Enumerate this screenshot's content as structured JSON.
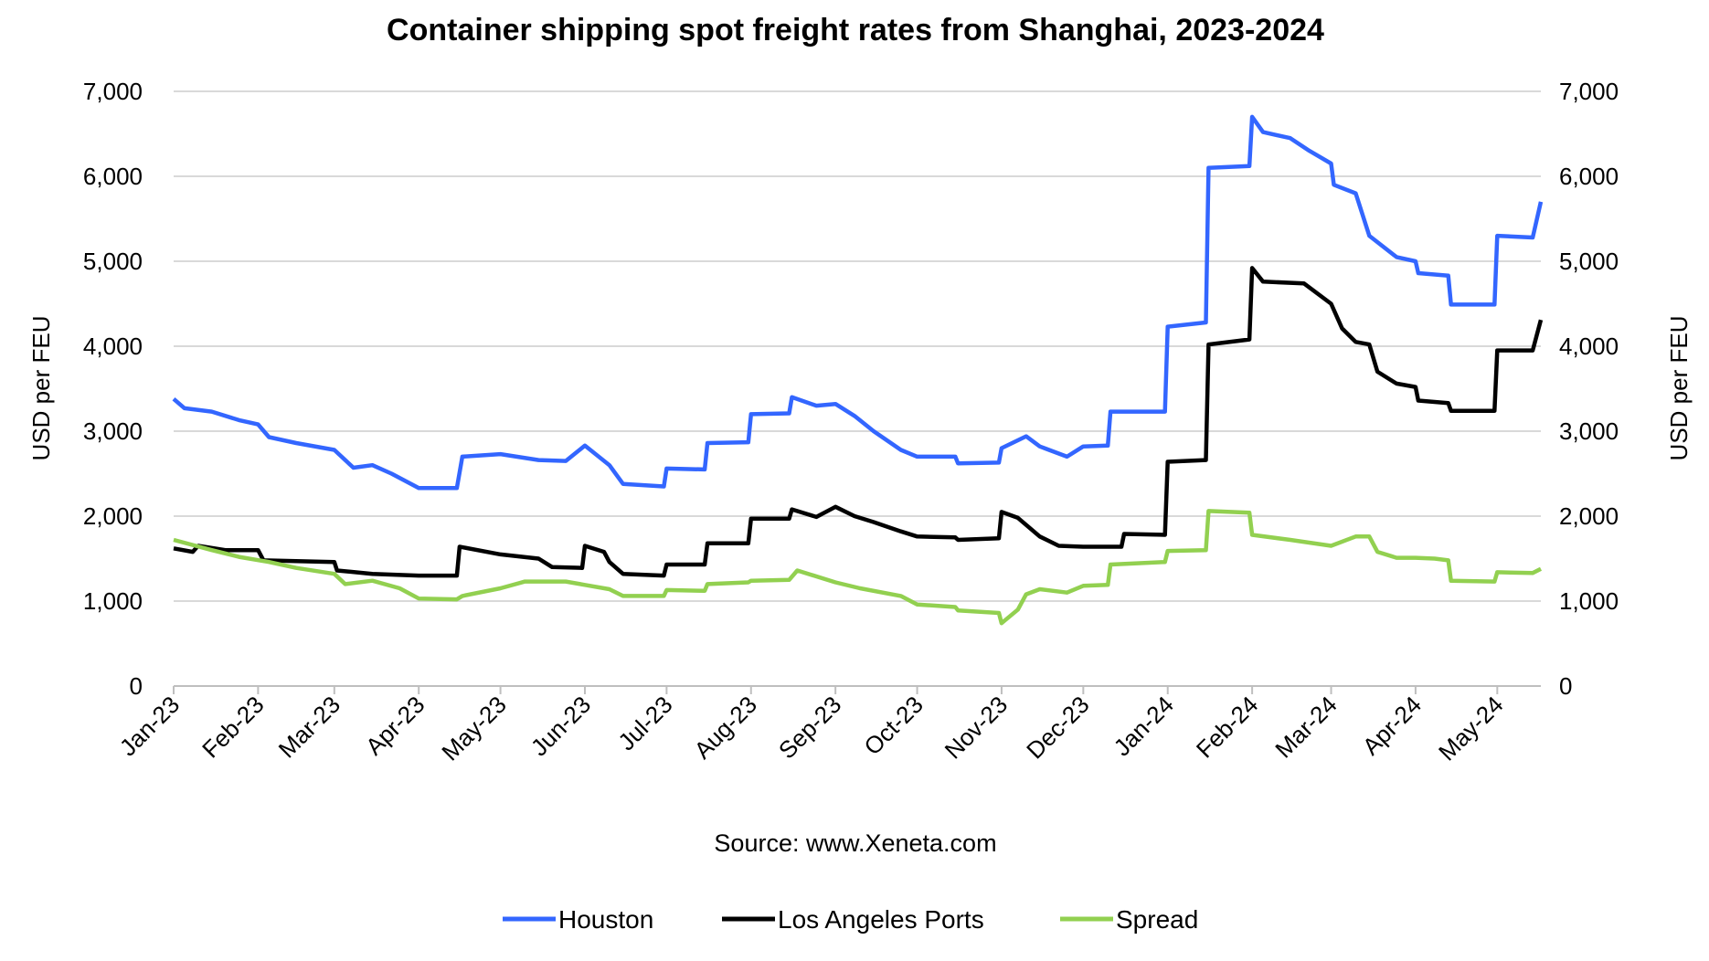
{
  "chart_data": {
    "type": "line",
    "title": "Container shipping spot freight rates from Shanghai, 2023-2024",
    "ylabel_left": "USD per FEU",
    "ylabel_right": "USD per FEU",
    "ylim": [
      0,
      7000
    ],
    "yticks": [
      0,
      1000,
      2000,
      3000,
      4000,
      5000,
      6000,
      7000
    ],
    "ytick_labels": [
      "0",
      "1,000",
      "2,000",
      "3,000",
      "4,000",
      "5,000",
      "6,000",
      "7,000"
    ],
    "xticks": [
      "2023-01-01",
      "2023-02-01",
      "2023-03-01",
      "2023-04-01",
      "2023-05-01",
      "2023-06-01",
      "2023-07-01",
      "2023-08-01",
      "2023-09-01",
      "2023-10-01",
      "2023-11-01",
      "2023-12-01",
      "2024-01-01",
      "2024-02-01",
      "2024-03-01",
      "2024-04-01",
      "2024-05-01"
    ],
    "xtick_labels": [
      "Jan-23",
      "Feb-23",
      "Mar-23",
      "Apr-23",
      "May-23",
      "Jun-23",
      "Jul-23",
      "Aug-23",
      "Sep-23",
      "Oct-23",
      "Nov-23",
      "Dec-23",
      "Jan-24",
      "Feb-24",
      "Mar-24",
      "Apr-24",
      "May-24"
    ],
    "xlim": [
      "2023-01-01",
      "2024-05-17"
    ],
    "grid": "horizontal",
    "legend_position": "bottom",
    "source": "Source: www.Xeneta.com",
    "series": [
      {
        "name": "Houston",
        "color": "#3366ff",
        "points": [
          [
            "2023-01-01",
            3380
          ],
          [
            "2023-01-05",
            3270
          ],
          [
            "2023-01-15",
            3230
          ],
          [
            "2023-01-25",
            3130
          ],
          [
            "2023-02-01",
            3080
          ],
          [
            "2023-02-05",
            2930
          ],
          [
            "2023-02-15",
            2860
          ],
          [
            "2023-03-01",
            2780
          ],
          [
            "2023-03-08",
            2570
          ],
          [
            "2023-03-15",
            2600
          ],
          [
            "2023-03-22",
            2500
          ],
          [
            "2023-04-01",
            2330
          ],
          [
            "2023-04-15",
            2330
          ],
          [
            "2023-04-17",
            2700
          ],
          [
            "2023-05-01",
            2730
          ],
          [
            "2023-05-15",
            2660
          ],
          [
            "2023-05-25",
            2650
          ],
          [
            "2023-06-01",
            2830
          ],
          [
            "2023-06-10",
            2600
          ],
          [
            "2023-06-15",
            2380
          ],
          [
            "2023-06-30",
            2350
          ],
          [
            "2023-07-01",
            2560
          ],
          [
            "2023-07-15",
            2550
          ],
          [
            "2023-07-16",
            2860
          ],
          [
            "2023-07-31",
            2870
          ],
          [
            "2023-08-01",
            3200
          ],
          [
            "2023-08-15",
            3210
          ],
          [
            "2023-08-16",
            3400
          ],
          [
            "2023-08-25",
            3300
          ],
          [
            "2023-09-01",
            3320
          ],
          [
            "2023-09-08",
            3180
          ],
          [
            "2023-09-15",
            3000
          ],
          [
            "2023-09-25",
            2780
          ],
          [
            "2023-10-01",
            2700
          ],
          [
            "2023-10-15",
            2700
          ],
          [
            "2023-10-16",
            2620
          ],
          [
            "2023-10-31",
            2630
          ],
          [
            "2023-11-01",
            2800
          ],
          [
            "2023-11-10",
            2940
          ],
          [
            "2023-11-15",
            2820
          ],
          [
            "2023-11-25",
            2700
          ],
          [
            "2023-12-01",
            2820
          ],
          [
            "2023-12-10",
            2830
          ],
          [
            "2023-12-11",
            3230
          ],
          [
            "2023-12-31",
            3230
          ],
          [
            "2024-01-01",
            4230
          ],
          [
            "2024-01-15",
            4280
          ],
          [
            "2024-01-16",
            6100
          ],
          [
            "2024-01-31",
            6120
          ],
          [
            "2024-02-01",
            6700
          ],
          [
            "2024-02-05",
            6520
          ],
          [
            "2024-02-15",
            6450
          ],
          [
            "2024-02-22",
            6300
          ],
          [
            "2024-03-01",
            6150
          ],
          [
            "2024-03-02",
            5900
          ],
          [
            "2024-03-10",
            5800
          ],
          [
            "2024-03-15",
            5300
          ],
          [
            "2024-03-25",
            5050
          ],
          [
            "2024-04-01",
            5000
          ],
          [
            "2024-04-02",
            4860
          ],
          [
            "2024-04-13",
            4830
          ],
          [
            "2024-04-14",
            4490
          ],
          [
            "2024-04-30",
            4490
          ],
          [
            "2024-05-01",
            5300
          ],
          [
            "2024-05-14",
            5280
          ],
          [
            "2024-05-17",
            5700
          ]
        ]
      },
      {
        "name": "Los Angeles Ports",
        "color": "#000000",
        "points": [
          [
            "2023-01-01",
            1620
          ],
          [
            "2023-01-08",
            1580
          ],
          [
            "2023-01-10",
            1650
          ],
          [
            "2023-01-20",
            1600
          ],
          [
            "2023-02-01",
            1600
          ],
          [
            "2023-02-03",
            1480
          ],
          [
            "2023-02-15",
            1470
          ],
          [
            "2023-03-01",
            1460
          ],
          [
            "2023-03-02",
            1360
          ],
          [
            "2023-03-15",
            1320
          ],
          [
            "2023-04-01",
            1300
          ],
          [
            "2023-04-15",
            1300
          ],
          [
            "2023-04-16",
            1640
          ],
          [
            "2023-05-01",
            1550
          ],
          [
            "2023-05-15",
            1500
          ],
          [
            "2023-05-20",
            1400
          ],
          [
            "2023-05-31",
            1390
          ],
          [
            "2023-06-01",
            1650
          ],
          [
            "2023-06-08",
            1580
          ],
          [
            "2023-06-10",
            1460
          ],
          [
            "2023-06-15",
            1320
          ],
          [
            "2023-06-30",
            1300
          ],
          [
            "2023-07-01",
            1430
          ],
          [
            "2023-07-15",
            1430
          ],
          [
            "2023-07-16",
            1680
          ],
          [
            "2023-07-31",
            1680
          ],
          [
            "2023-08-01",
            1970
          ],
          [
            "2023-08-15",
            1970
          ],
          [
            "2023-08-16",
            2080
          ],
          [
            "2023-08-25",
            1990
          ],
          [
            "2023-09-01",
            2110
          ],
          [
            "2023-09-08",
            2000
          ],
          [
            "2023-09-15",
            1930
          ],
          [
            "2023-09-25",
            1820
          ],
          [
            "2023-10-01",
            1760
          ],
          [
            "2023-10-15",
            1750
          ],
          [
            "2023-10-16",
            1720
          ],
          [
            "2023-10-31",
            1740
          ],
          [
            "2023-11-01",
            2050
          ],
          [
            "2023-11-07",
            1980
          ],
          [
            "2023-11-15",
            1760
          ],
          [
            "2023-11-22",
            1650
          ],
          [
            "2023-12-01",
            1640
          ],
          [
            "2023-12-15",
            1640
          ],
          [
            "2023-12-16",
            1790
          ],
          [
            "2023-12-31",
            1780
          ],
          [
            "2024-01-01",
            2640
          ],
          [
            "2024-01-15",
            2660
          ],
          [
            "2024-01-16",
            4020
          ],
          [
            "2024-01-31",
            4080
          ],
          [
            "2024-02-01",
            4920
          ],
          [
            "2024-02-05",
            4760
          ],
          [
            "2024-02-20",
            4740
          ],
          [
            "2024-03-01",
            4500
          ],
          [
            "2024-03-05",
            4210
          ],
          [
            "2024-03-10",
            4050
          ],
          [
            "2024-03-15",
            4020
          ],
          [
            "2024-03-18",
            3700
          ],
          [
            "2024-03-25",
            3560
          ],
          [
            "2024-04-01",
            3520
          ],
          [
            "2024-04-02",
            3360
          ],
          [
            "2024-04-13",
            3330
          ],
          [
            "2024-04-14",
            3240
          ],
          [
            "2024-04-30",
            3240
          ],
          [
            "2024-05-01",
            3950
          ],
          [
            "2024-05-14",
            3950
          ],
          [
            "2024-05-17",
            4310
          ]
        ]
      },
      {
        "name": "Spread",
        "color": "#92d050",
        "points": [
          [
            "2023-01-01",
            1720
          ],
          [
            "2023-01-15",
            1600
          ],
          [
            "2023-01-25",
            1520
          ],
          [
            "2023-02-05",
            1460
          ],
          [
            "2023-02-15",
            1390
          ],
          [
            "2023-03-01",
            1320
          ],
          [
            "2023-03-05",
            1200
          ],
          [
            "2023-03-15",
            1240
          ],
          [
            "2023-03-25",
            1150
          ],
          [
            "2023-04-01",
            1030
          ],
          [
            "2023-04-15",
            1020
          ],
          [
            "2023-04-17",
            1060
          ],
          [
            "2023-05-01",
            1150
          ],
          [
            "2023-05-10",
            1230
          ],
          [
            "2023-05-25",
            1230
          ],
          [
            "2023-06-01",
            1190
          ],
          [
            "2023-06-10",
            1140
          ],
          [
            "2023-06-15",
            1060
          ],
          [
            "2023-06-30",
            1060
          ],
          [
            "2023-07-01",
            1130
          ],
          [
            "2023-07-15",
            1120
          ],
          [
            "2023-07-16",
            1200
          ],
          [
            "2023-07-31",
            1220
          ],
          [
            "2023-08-01",
            1240
          ],
          [
            "2023-08-15",
            1250
          ],
          [
            "2023-08-18",
            1360
          ],
          [
            "2023-09-01",
            1220
          ],
          [
            "2023-09-10",
            1150
          ],
          [
            "2023-09-25",
            1060
          ],
          [
            "2023-10-01",
            960
          ],
          [
            "2023-10-15",
            930
          ],
          [
            "2023-10-16",
            890
          ],
          [
            "2023-10-31",
            860
          ],
          [
            "2023-11-01",
            740
          ],
          [
            "2023-11-07",
            900
          ],
          [
            "2023-11-10",
            1080
          ],
          [
            "2023-11-15",
            1140
          ],
          [
            "2023-11-25",
            1100
          ],
          [
            "2023-12-01",
            1180
          ],
          [
            "2023-12-10",
            1190
          ],
          [
            "2023-12-11",
            1430
          ],
          [
            "2023-12-31",
            1460
          ],
          [
            "2024-01-01",
            1590
          ],
          [
            "2024-01-15",
            1600
          ],
          [
            "2024-01-16",
            2060
          ],
          [
            "2024-01-31",
            2040
          ],
          [
            "2024-02-01",
            1780
          ],
          [
            "2024-02-15",
            1720
          ],
          [
            "2024-03-01",
            1650
          ],
          [
            "2024-03-10",
            1760
          ],
          [
            "2024-03-15",
            1760
          ],
          [
            "2024-03-18",
            1580
          ],
          [
            "2024-03-25",
            1510
          ],
          [
            "2024-04-01",
            1510
          ],
          [
            "2024-04-08",
            1500
          ],
          [
            "2024-04-13",
            1480
          ],
          [
            "2024-04-14",
            1240
          ],
          [
            "2024-04-30",
            1230
          ],
          [
            "2024-05-01",
            1340
          ],
          [
            "2024-05-14",
            1330
          ],
          [
            "2024-05-17",
            1380
          ]
        ]
      }
    ]
  }
}
